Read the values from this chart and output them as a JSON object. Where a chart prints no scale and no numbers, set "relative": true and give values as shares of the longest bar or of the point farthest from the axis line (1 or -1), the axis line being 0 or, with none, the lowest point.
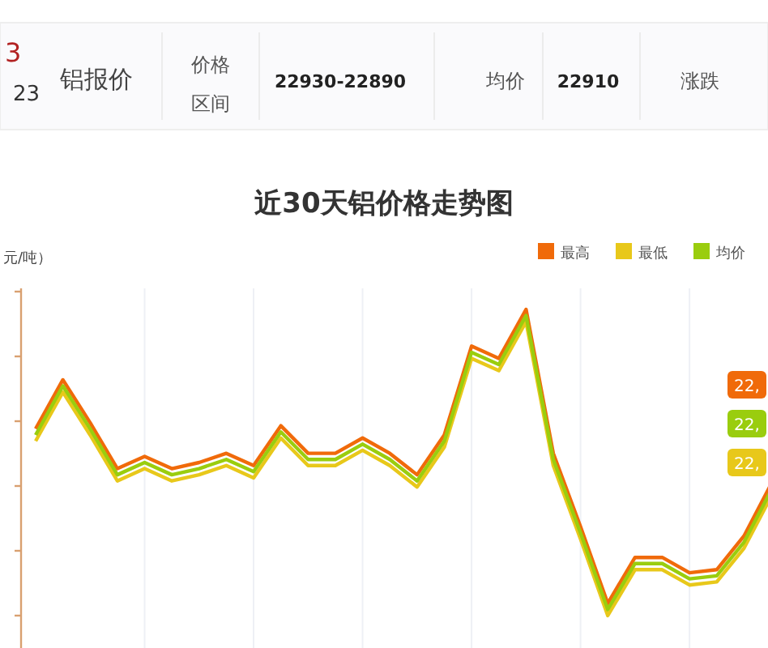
{
  "chart_data": {
    "type": "line",
    "title": "近30天铝价格走势图",
    "ylabel": "元/吨）",
    "relative": true,
    "annotations": [
      "3",
      "23",
      "铝报价",
      "价格区间",
      "22930-22890",
      "均价",
      "22910",
      "涨跌",
      "22,",
      "22,",
      "22,"
    ],
    "categories": [
      null,
      null,
      null,
      null,
      null,
      null,
      null,
      null,
      null,
      null,
      null,
      null,
      null,
      null,
      null,
      null,
      null,
      null,
      null,
      null,
      null,
      null,
      null,
      null,
      null,
      null,
      null,
      null
    ],
    "series": [
      {
        "name": "最高",
        "color": "#f06a0a",
        "values": [
          0.61,
          0.77,
          0.63,
          0.48,
          0.52,
          0.48,
          0.5,
          0.53,
          0.49,
          0.62,
          0.53,
          0.53,
          0.58,
          0.53,
          0.46,
          0.59,
          0.88,
          0.84,
          1,
          0.53,
          0.29,
          0.04,
          0.19,
          0.19,
          0.14,
          0.15,
          0.26,
          0.43
        ]
      },
      {
        "name": "最低",
        "color": "#e8c81a",
        "values": [
          0.57,
          0.73,
          0.59,
          0.44,
          0.48,
          0.44,
          0.46,
          0.49,
          0.45,
          0.58,
          0.49,
          0.49,
          0.54,
          0.49,
          0.42,
          0.55,
          0.84,
          0.8,
          0.96,
          0.49,
          0.25,
          0,
          0.15,
          0.15,
          0.1,
          0.11,
          0.22,
          0.39
        ]
      },
      {
        "name": "均价",
        "color": "#9acd0e",
        "values": [
          0.59,
          0.75,
          0.61,
          0.46,
          0.5,
          0.46,
          0.48,
          0.51,
          0.47,
          0.6,
          0.51,
          0.51,
          0.56,
          0.51,
          0.44,
          0.57,
          0.86,
          0.82,
          0.98,
          0.51,
          0.27,
          0.02,
          0.17,
          0.17,
          0.12,
          0.13,
          0.24,
          0.41
        ]
      }
    ],
    "grid": "x",
    "legend": "top right"
  }
}
